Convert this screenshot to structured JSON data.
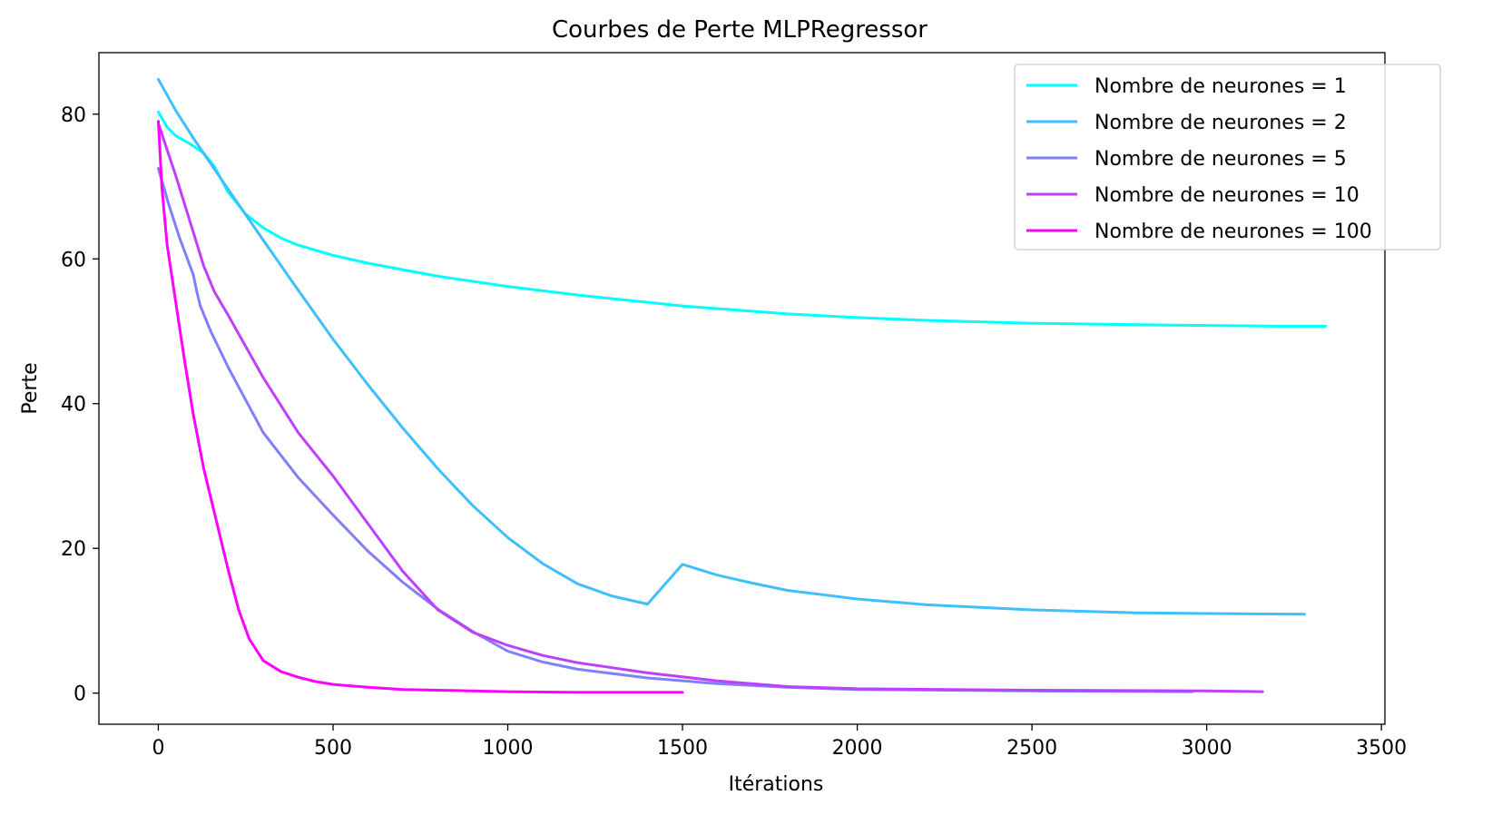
{
  "chart_data": {
    "type": "line",
    "title": "Courbes de Perte MLPRegressor",
    "xlabel": "Itérations",
    "ylabel": "Perte",
    "xlim": [
      -170,
      3510
    ],
    "ylim": [
      -4.3,
      88.5
    ],
    "xticks": [
      0,
      500,
      1000,
      1500,
      2000,
      2500,
      3000,
      3500
    ],
    "yticks": [
      0,
      20,
      40,
      60,
      80
    ],
    "grid": false,
    "legend_position": "top-right",
    "series": [
      {
        "name": "Nombre de neurones = 1",
        "color": "#00ffff",
        "x": [
          0,
          25,
          50,
          80,
          100,
          130,
          160,
          180,
          200,
          250,
          300,
          350,
          400,
          500,
          600,
          800,
          1000,
          1200,
          1500,
          1800,
          2000,
          2200,
          2500,
          2800,
          3000,
          3200,
          3340
        ],
        "y": [
          80.3,
          78.2,
          77.0,
          76.2,
          75.6,
          74.6,
          72.8,
          71.0,
          69.2,
          66.2,
          64.3,
          62.9,
          61.9,
          60.5,
          59.4,
          57.6,
          56.2,
          55.0,
          53.5,
          52.4,
          51.9,
          51.5,
          51.1,
          50.9,
          50.8,
          50.7,
          50.7
        ]
      },
      {
        "name": "Nombre de neurones = 2",
        "color": "#3fbfff",
        "x": [
          0,
          50,
          100,
          200,
          300,
          400,
          500,
          600,
          700,
          800,
          900,
          1000,
          1100,
          1200,
          1300,
          1400,
          1500,
          1600,
          1700,
          1800,
          2000,
          2200,
          2500,
          2800,
          3000,
          3280
        ],
        "y": [
          84.8,
          80.5,
          76.7,
          69.6,
          62.6,
          55.7,
          48.9,
          42.6,
          36.6,
          31.0,
          25.9,
          21.5,
          17.9,
          15.1,
          13.4,
          12.3,
          17.8,
          16.3,
          15.2,
          14.2,
          13.0,
          12.2,
          11.5,
          11.1,
          11.0,
          10.9
        ]
      },
      {
        "name": "Nombre de neurones = 5",
        "color": "#7f7fff",
        "x": [
          0,
          30,
          60,
          100,
          110,
          120,
          150,
          200,
          300,
          400,
          500,
          600,
          700,
          800,
          900,
          1000,
          1100,
          1200,
          1400,
          1600,
          1800,
          2000,
          2500,
          2960
        ],
        "y": [
          72.5,
          67.5,
          63.0,
          57.8,
          55.5,
          53.5,
          50.0,
          45.0,
          36.0,
          29.8,
          24.6,
          19.6,
          15.3,
          11.6,
          8.5,
          5.8,
          4.3,
          3.3,
          2.1,
          1.3,
          0.8,
          0.5,
          0.3,
          0.2
        ]
      },
      {
        "name": "Nombre de neurones = 10",
        "color": "#bf3fff",
        "x": [
          0,
          50,
          100,
          130,
          160,
          200,
          300,
          400,
          500,
          600,
          700,
          800,
          900,
          1000,
          1100,
          1200,
          1400,
          1600,
          1800,
          2000,
          2500,
          3000,
          3160
        ],
        "y": [
          78.7,
          71.5,
          63.7,
          59.0,
          55.5,
          52.2,
          43.6,
          36.0,
          30.0,
          23.4,
          16.8,
          11.5,
          8.4,
          6.6,
          5.2,
          4.2,
          2.8,
          1.7,
          0.9,
          0.6,
          0.4,
          0.3,
          0.2
        ]
      },
      {
        "name": "Nombre de neurones = 100",
        "color": "#ff00ff",
        "x": [
          0,
          10,
          25,
          50,
          75,
          100,
          130,
          160,
          200,
          230,
          260,
          300,
          350,
          400,
          450,
          500,
          600,
          700,
          800,
          1000,
          1200,
          1500
        ],
        "y": [
          79.0,
          70.0,
          62.0,
          54.0,
          46.0,
          38.5,
          31.0,
          25.0,
          17.0,
          11.5,
          7.5,
          4.5,
          3.0,
          2.2,
          1.6,
          1.2,
          0.8,
          0.5,
          0.4,
          0.2,
          0.1,
          0.1
        ]
      }
    ]
  }
}
